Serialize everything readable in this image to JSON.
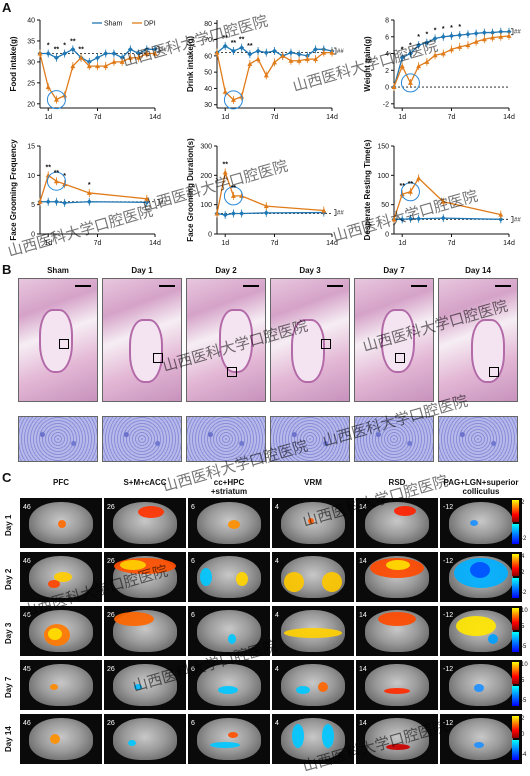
{
  "panels": {
    "a": "A",
    "b": "B",
    "c": "C"
  },
  "legend": {
    "sham": "Sham",
    "dpi": "DPI"
  },
  "colors": {
    "sham": "#1f77b4",
    "dpi": "#e07b1a"
  },
  "chart_data": [
    {
      "type": "line",
      "ylabel": "Food intake(g)",
      "x_ticks": [
        "1d",
        "7d",
        "14d"
      ],
      "y_ticks": [
        20,
        25,
        30,
        35,
        40
      ],
      "ylim": [
        19,
        40
      ],
      "x": [
        0,
        1,
        2,
        3,
        4,
        5,
        6,
        7,
        8,
        9,
        10,
        11,
        12,
        13,
        14
      ],
      "series": [
        {
          "name": "Sham",
          "values": [
            32,
            32,
            31,
            32,
            33,
            31,
            30,
            31,
            32,
            32,
            31,
            33,
            32,
            33,
            33
          ]
        },
        {
          "name": "DPI",
          "values": [
            32,
            24,
            21,
            22,
            29,
            31,
            29,
            29,
            29,
            30,
            30,
            31,
            31,
            32,
            32
          ]
        }
      ],
      "stars": [
        "*",
        "**",
        "*",
        "**",
        "**"
      ],
      "hash": "##"
    },
    {
      "type": "line",
      "ylabel": "Drink intake(g)",
      "x_ticks": [
        "1d",
        "7d",
        "14d"
      ],
      "y_ticks": [
        30,
        40,
        50,
        60,
        70,
        80
      ],
      "ylim": [
        28,
        82
      ],
      "x": [
        0,
        1,
        2,
        3,
        4,
        5,
        6,
        7,
        8,
        9,
        10,
        11,
        12,
        13,
        14
      ],
      "series": [
        {
          "name": "Sham",
          "values": [
            62,
            66,
            63,
            65,
            61,
            63,
            62,
            63,
            60,
            62,
            61,
            60,
            64,
            64,
            63
          ]
        },
        {
          "name": "DPI",
          "values": [
            62,
            38,
            33,
            35,
            55,
            58,
            48,
            56,
            60,
            57,
            57,
            58,
            58,
            62,
            62
          ]
        }
      ],
      "stars": [
        "**",
        "**",
        "**",
        "**"
      ],
      "hash": "##"
    },
    {
      "type": "line",
      "ylabel": "Weight gain(g)",
      "x_ticks": [
        "1d",
        "7d",
        "14d"
      ],
      "y_ticks": [
        -2,
        0,
        2,
        4,
        6,
        8
      ],
      "ylim": [
        -2.5,
        8
      ],
      "x": [
        0,
        1,
        2,
        3,
        4,
        5,
        6,
        7,
        8,
        9,
        10,
        11,
        12,
        13,
        14
      ],
      "series": [
        {
          "name": "Sham",
          "values": [
            0,
            3.5,
            4,
            5,
            5.3,
            5.8,
            6,
            6.1,
            6.2,
            6.3,
            6.4,
            6.5,
            6.5,
            6.6,
            6.6
          ]
        },
        {
          "name": "DPI",
          "values": [
            0,
            2.5,
            0.5,
            2.5,
            3,
            3.8,
            4,
            4.5,
            4.8,
            5,
            5.4,
            5.7,
            5.9,
            6,
            6.1
          ]
        }
      ],
      "stars": [
        "*",
        "*",
        "*",
        "*",
        "*",
        "*",
        "*",
        "*"
      ],
      "hash": "##"
    },
    {
      "type": "line",
      "ylabel": "Face Grooming Frequency",
      "x_ticks": [
        "1d",
        "7d",
        "14d"
      ],
      "y_ticks": [
        0,
        5,
        10,
        15
      ],
      "ylim": [
        0,
        15
      ],
      "x": [
        0,
        1,
        2,
        3,
        6,
        13
      ],
      "series": [
        {
          "name": "Sham",
          "values": [
            5.5,
            5.5,
            5.5,
            5.3,
            5.5,
            5.4
          ]
        },
        {
          "name": "DPI",
          "values": [
            5.5,
            10,
            9,
            8.5,
            7,
            6
          ]
        }
      ],
      "stars": [
        "**",
        "**",
        "*",
        "*"
      ],
      "hash": "##"
    },
    {
      "type": "line",
      "ylabel": "Face Grooming Duration(s)",
      "x_ticks": [
        "1d",
        "7d",
        "14d"
      ],
      "y_ticks": [
        0,
        100,
        200,
        300
      ],
      "ylim": [
        0,
        300
      ],
      "x": [
        0,
        1,
        2,
        3,
        6,
        13
      ],
      "series": [
        {
          "name": "Sham",
          "values": [
            70,
            65,
            70,
            70,
            72,
            73
          ]
        },
        {
          "name": "DPI",
          "values": [
            70,
            210,
            130,
            130,
            95,
            80
          ]
        }
      ],
      "stars": [
        "**",
        "**"
      ],
      "hash": "##"
    },
    {
      "type": "line",
      "ylabel": "Desperate Resting Time(s)",
      "x_ticks": [
        "1d",
        "7d",
        "14d"
      ],
      "y_ticks": [
        0,
        50,
        100,
        150
      ],
      "ylim": [
        0,
        150
      ],
      "x": [
        0,
        1,
        2,
        3,
        6,
        13
      ],
      "series": [
        {
          "name": "Sham",
          "values": [
            25,
            25,
            26,
            26,
            27,
            25
          ]
        },
        {
          "name": "DPI",
          "values": [
            25,
            68,
            72,
            95,
            55,
            33
          ]
        }
      ],
      "stars": [
        "**",
        "**"
      ],
      "hash": "##"
    }
  ],
  "histology": {
    "columns": [
      "Sham",
      "Day 1",
      "Day 2",
      "Day 3",
      "Day 7",
      "Day 14"
    ]
  },
  "mri": {
    "columns": [
      "PFC",
      "S+M+cACC",
      "cc+HPC\n+striatum",
      "VRM",
      "RSD",
      "PAG+LGN+superior\ncolliculus"
    ],
    "rows": [
      "Day 1",
      "Day 2",
      "Day 3",
      "Day 7",
      "Day 14"
    ],
    "slice_numbers": [
      [
        "46",
        "26",
        "6",
        "4",
        "14",
        "-12"
      ],
      [
        "46",
        "26",
        "6",
        "4",
        "14",
        "-12"
      ],
      [
        "46",
        "26",
        "6",
        "4",
        "14",
        "-12"
      ],
      [
        "45",
        "26",
        "6",
        "4",
        "14",
        "-12"
      ],
      [
        "46",
        "26",
        "6",
        "4",
        "14",
        "-12"
      ]
    ],
    "colorbars": [
      {
        "top": "2",
        "bottom": "-2"
      },
      {
        "top": "4",
        "mid": "2",
        "bottom": "-2"
      },
      {
        "top": "10",
        "mid": "5",
        "bottom": "-5"
      },
      {
        "top": "10",
        "mid": "5",
        "bottom": "-5"
      },
      {
        "top": "2",
        "mid": "0",
        "bottom": "-4"
      }
    ]
  },
  "watermark": "山西医科大学口腔医院"
}
